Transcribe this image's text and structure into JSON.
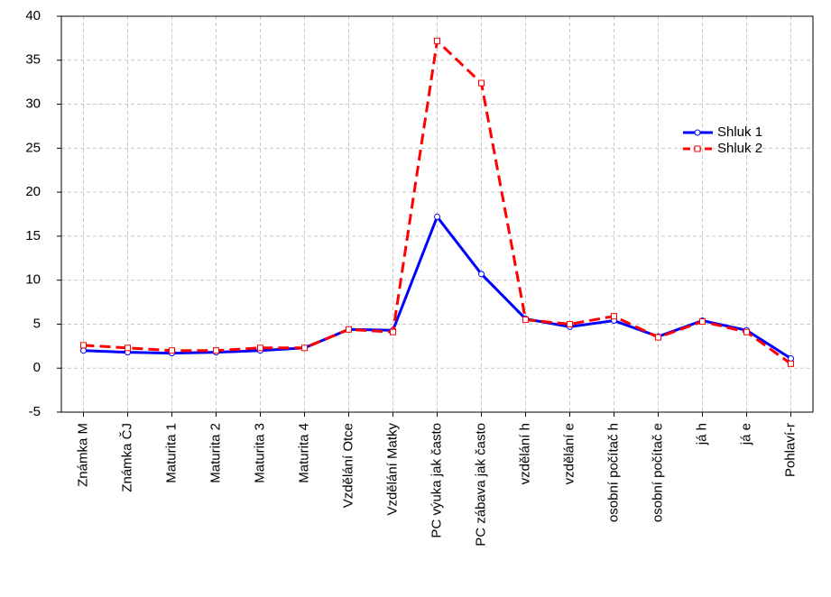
{
  "chart_data": {
    "type": "line",
    "categories": [
      "Známka M",
      "Známka ČJ",
      "Maturita 1",
      "Maturita 2",
      "Maturita 3",
      "Maturita 4",
      "Vzdělání Otce",
      "Vzdělání Matky",
      "PC  výuka jak často",
      "PC  zábava jak často",
      "vzdělání h",
      "vzdělání e",
      "osobní počítač h",
      "osobní počítač e",
      "já h",
      "já e",
      "Pohlaví-r"
    ],
    "series": [
      {
        "name": "Shluk 1",
        "color": "#0000ff",
        "marker": "circle",
        "dash": "solid",
        "values": [
          2.0,
          1.8,
          1.7,
          1.8,
          2.0,
          2.3,
          4.4,
          4.3,
          17.2,
          10.7,
          5.6,
          4.7,
          5.4,
          3.6,
          5.4,
          4.3,
          1.1
        ]
      },
      {
        "name": "Shluk 2",
        "color": "#ff0000",
        "marker": "square",
        "dash": "dashed",
        "values": [
          2.6,
          2.3,
          2.0,
          2.0,
          2.3,
          2.3,
          4.4,
          4.1,
          37.2,
          32.4,
          5.5,
          5.0,
          5.9,
          3.5,
          5.3,
          4.1,
          0.5
        ]
      }
    ],
    "ylim": [
      -5,
      40
    ],
    "yticks": [
      -5,
      0,
      5,
      10,
      15,
      20,
      25,
      30,
      35,
      40
    ],
    "grid": true,
    "legend": "right"
  }
}
